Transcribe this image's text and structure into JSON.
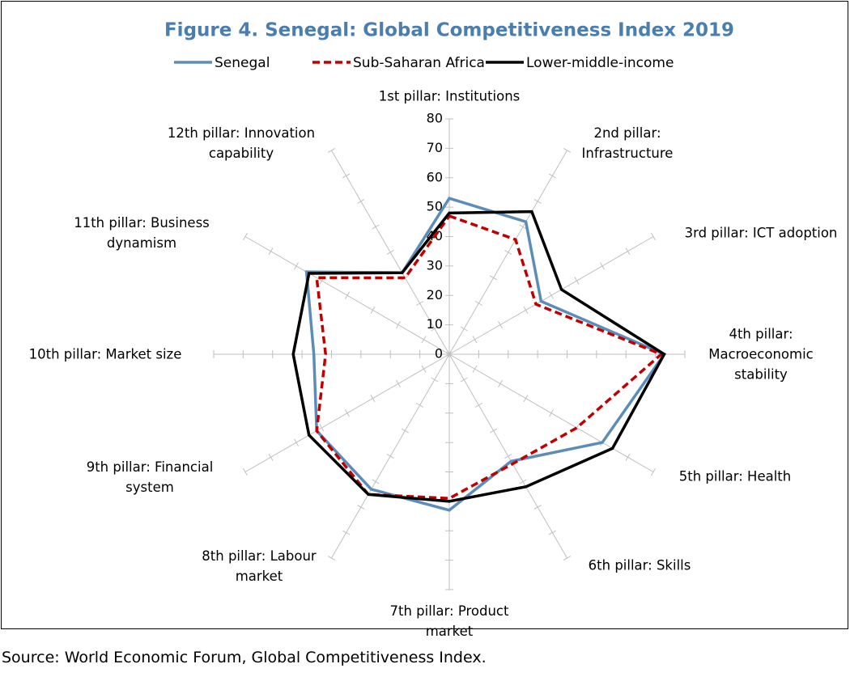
{
  "chart_data": {
    "type": "radar",
    "title": "Figure 4. Senegal: Global Competitiveness Index 2019",
    "categories": [
      "1st pillar: Institutions",
      "2nd pillar: Infrastructure",
      "3rd pillar: ICT adoption",
      "4th pillar: Macroeconomic stability",
      "5th pillar: Health",
      "6th pillar: Skills",
      "7th pillar: Product market",
      "8th pillar: Labour market",
      "9th pillar: Financial system",
      "10th pillar: Market size",
      "11th pillar: Business dynamism",
      "12th pillar: Innovation capability"
    ],
    "series": [
      {
        "name": "Senegal",
        "color": "#5b8db8",
        "dashed": false,
        "values": [
          53,
          52,
          36,
          73,
          60,
          42,
          53,
          53,
          52,
          46,
          56,
          32
        ]
      },
      {
        "name": "Sub-Saharan Africa",
        "color": "#c00000",
        "dashed": true,
        "values": [
          47,
          45,
          34,
          72,
          50,
          43,
          49,
          55,
          52,
          42,
          52,
          30
        ]
      },
      {
        "name": "Lower-middle-income",
        "color": "#000000",
        "dashed": false,
        "values": [
          48,
          56,
          44,
          73,
          64,
          52,
          50,
          55,
          55,
          53,
          55,
          32
        ]
      }
    ],
    "ylim": [
      0,
      80
    ],
    "yticks": [
      0,
      10,
      20,
      30,
      40,
      50,
      60,
      70,
      80
    ],
    "source": "Source: World Economic Forum, Global Competitiveness Index."
  }
}
